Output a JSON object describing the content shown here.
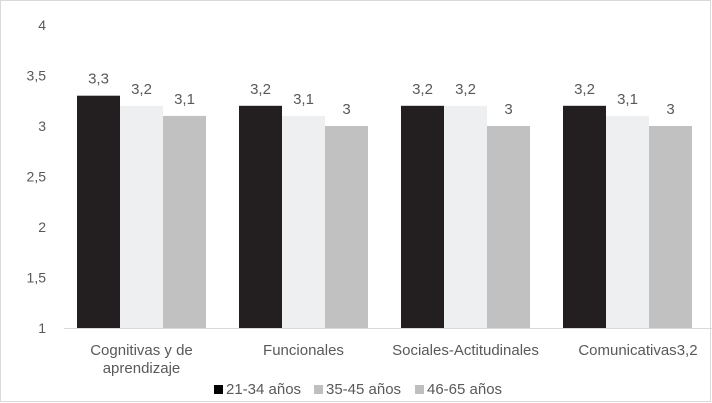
{
  "chart_data": {
    "type": "bar",
    "categories": [
      [
        "Cognitivas y de",
        "aprendizaje"
      ],
      [
        "Funcionales"
      ],
      [
        "Sociales-Actitudinales"
      ],
      [
        "Comunicativas"
      ]
    ],
    "series": [
      {
        "name": "21-34 años",
        "values": [
          3.3,
          3.2,
          3.2,
          3.2
        ],
        "labels": [
          "3,3",
          "3,2",
          "3,2",
          "3,2"
        ],
        "color": "#231f20"
      },
      {
        "name": "35-45 años",
        "values": [
          3.2,
          3.1,
          3.2,
          3.1
        ],
        "labels": [
          "3,2",
          "3,1",
          "3,2",
          "3,1"
        ],
        "color": "#eeeff1"
      },
      {
        "name": "46-65 años",
        "values": [
          3.1,
          3.0,
          3.0,
          3.0
        ],
        "labels": [
          "3,1",
          "3",
          "3",
          "3"
        ],
        "color": "#c1c1c1"
      }
    ],
    "yticks": [
      "1",
      "1,5",
      "2",
      "2,5",
      "3",
      "3,5",
      "4"
    ],
    "ylim": [
      1,
      4
    ],
    "title": "",
    "xlabel": "",
    "ylabel": "",
    "grid": false,
    "legend_position": "bottom",
    "annotation": "3,2",
    "axis_color": "#d9d9d9"
  }
}
